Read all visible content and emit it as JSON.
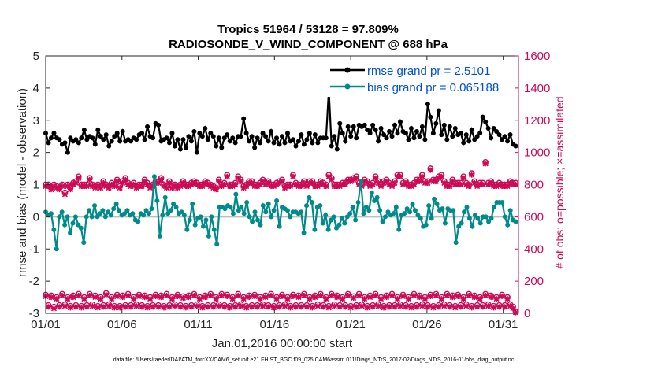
{
  "chart_data": {
    "type": "line",
    "title": "Tropics 51964 / 53128 = 97.809%",
    "subtitle": "RADIOSONDE_V_WIND_COMPONENT @ 688 hPa",
    "xlabel": "Jan.01,2016 00:00:00 start",
    "ylabel": "rmse and bias (model - observation)",
    "ylabel_right": "# of obs: o=possible; ×=assimilated",
    "x_ticks": [
      "01/01",
      "01/06",
      "01/11",
      "01/16",
      "01/21",
      "01/26",
      "01/31"
    ],
    "x_tick_days": [
      1,
      6,
      11,
      16,
      21,
      26,
      31
    ],
    "xlim": [
      1,
      32
    ],
    "ylim": [
      -3,
      5
    ],
    "y_ticks": [
      5,
      4,
      3,
      2,
      1,
      0,
      -1,
      -2,
      -3
    ],
    "ylim_right": [
      0,
      1600
    ],
    "y_ticks_right": [
      1600,
      1400,
      1200,
      1000,
      800,
      600,
      400,
      200,
      0
    ],
    "footnote": "data file: /Users/raeder/DAI/ATM_forcXX/CAM6_setup/f.e21.FHIST_BGC.f09_025.CAM6assim.011/Diags_NTrS_2017-02/Diags_NTrS_2016-01/obs_diag_output.nc",
    "legend": [
      {
        "name": "rmse grand pr = 2.5101",
        "color": "#000000"
      },
      {
        "name": "bias grand pr = 0.065188",
        "color": "#008b8b"
      }
    ],
    "series": [
      {
        "name": "rmse",
        "color": "#000000",
        "values": [
          2.6,
          2.3,
          2.45,
          2.6,
          2.45,
          2.4,
          2.25,
          2.3,
          2.0,
          2.45,
          2.35,
          2.4,
          2.3,
          2.45,
          2.7,
          2.4,
          2.5,
          2.45,
          2.25,
          2.7,
          2.5,
          2.4,
          2.55,
          2.2,
          2.35,
          2.5,
          2.6,
          2.35,
          2.65,
          2.35,
          2.4,
          2.35,
          2.45,
          2.4,
          2.55,
          2.6,
          2.4,
          2.8,
          2.5,
          2.45,
          2.9,
          2.85,
          2.35,
          2.4,
          2.45,
          2.3,
          2.6,
          2.2,
          2.4,
          2.1,
          2.4,
          2.15,
          2.5,
          2.35,
          2.65,
          2.0,
          2.6,
          2.5,
          2.75,
          2.4,
          2.6,
          2.5,
          2.2,
          2.45,
          2.15,
          2.45,
          2.55,
          2.35,
          2.45,
          2.3,
          2.5,
          2.5,
          3.05,
          2.6,
          2.35,
          2.5,
          2.15,
          2.45,
          2.3,
          2.6,
          2.5,
          2.35,
          2.65,
          2.3,
          2.45,
          2.25,
          2.5,
          2.3,
          2.6,
          2.35,
          2.4,
          2.2,
          2.35,
          2.55,
          2.25,
          2.4,
          2.6,
          2.3,
          2.55,
          2.3,
          2.45,
          2.45,
          2.45,
          3.95,
          2.2,
          2.5,
          2.1,
          2.9,
          2.6,
          2.35,
          2.8,
          2.5,
          2.8,
          2.45,
          2.85,
          2.8,
          2.85,
          2.7,
          2.6,
          2.85,
          2.7,
          2.35,
          2.75,
          2.55,
          2.45,
          2.65,
          2.5,
          2.85,
          2.6,
          2.95,
          2.65,
          2.6,
          2.4,
          2.75,
          2.45,
          2.65,
          2.5,
          2.8,
          2.4,
          3.5,
          3.1,
          2.6,
          2.9,
          3.3,
          2.55,
          2.85,
          2.4,
          2.8,
          2.5,
          2.75,
          2.55,
          2.6,
          2.3,
          2.55,
          2.35,
          2.7,
          2.4,
          2.5,
          2.6,
          3.1,
          2.95,
          2.75,
          2.45,
          2.75,
          2.65,
          2.55,
          2.4,
          2.5,
          2.35,
          2.55,
          2.25,
          2.2
        ]
      },
      {
        "name": "bias",
        "color": "#008b8b",
        "values": [
          0.15,
          0.05,
          0.1,
          -0.4,
          -1.0,
          0.0,
          0.15,
          -0.25,
          0.0,
          -0.5,
          -0.2,
          0.0,
          -0.25,
          -0.35,
          -0.8,
          0.0,
          0.2,
          0.0,
          0.35,
          0.0,
          0.1,
          0.2,
          0.0,
          0.15,
          0.05,
          0.25,
          0.4,
          0.2,
          0.05,
          0.1,
          0.2,
          0.05,
          0.1,
          -0.1,
          -0.15,
          0.1,
          0.05,
          0.2,
          0.1,
          0.25,
          1.25,
          0.5,
          -0.6,
          0.05,
          0.6,
          0.1,
          0.2,
          0.4,
          0.3,
          0.1,
          0.15,
          0.05,
          -0.4,
          -0.1,
          0.4,
          -0.25,
          -0.05,
          0.0,
          -0.3,
          -0.1,
          -0.6,
          0.0,
          -0.4,
          -0.85,
          0.3,
          0.3,
          0.25,
          0.35,
          0.3,
          0.1,
          0.7,
          0.2,
          0.3,
          0.1,
          0.45,
          0.0,
          -0.15,
          0.15,
          -0.1,
          -0.25,
          0.35,
          0.15,
          0.4,
          0.0,
          0.2,
          0.5,
          -0.3,
          0.3,
          0.25,
          0.2,
          0.0,
          0.15,
          0.15,
          0.1,
          0.15,
          -0.5,
          0.35,
          0.6,
          0.45,
          -0.4,
          0.3,
          0.35,
          -0.2,
          0.05,
          -0.4,
          -0.1,
          0.0,
          -0.35,
          -0.25,
          -0.05,
          -0.2,
          0.0,
          0.1,
          0.3,
          -0.1,
          0.45,
          1.1,
          0.1,
          0.3,
          0.2,
          0.75,
          0.5,
          0.6,
          0.2,
          -0.15,
          0.0,
          0.15,
          0.05,
          0.1,
          0.3,
          -0.4,
          0.05,
          0.1,
          0.25,
          0.15,
          0.4,
          0.2,
          0.05,
          -0.05,
          -0.3,
          -0.25,
          0.35,
          -0.05,
          0.55,
          0.4,
          0.2,
          0.25,
          -0.2,
          0.25,
          0.2,
          0.2,
          -0.8,
          -0.3,
          -0.2,
          0.15,
          0.3,
          -0.05,
          -0.3,
          0.05,
          -0.05,
          -0.2,
          0.0,
          0.0,
          -0.15,
          -0.05,
          0.3,
          0.45,
          0.45,
          0.45,
          0.0,
          -0.25,
          0.2,
          -0.1,
          -0.15
        ]
      },
      {
        "name": "obs possible (o)",
        "color": "#cc0a55",
        "axis": "right",
        "values": [
          800,
          800,
          780,
          800,
          790,
          780,
          800,
          750,
          800,
          780,
          810,
          820,
          850,
          800,
          800,
          800,
          840,
          800,
          790,
          800,
          790,
          820,
          800,
          790,
          810,
          800,
          830,
          790,
          820,
          840,
          810,
          800,
          810,
          790,
          800,
          800,
          830,
          810,
          790,
          800,
          820,
          820,
          840,
          800,
          790,
          820,
          790,
          800,
          790,
          800,
          820,
          800,
          800,
          810,
          820,
          810,
          800,
          800,
          820,
          810,
          800,
          790,
          780,
          830,
          800,
          810,
          860,
          800,
          800,
          810,
          850,
          830,
          790,
          800,
          820,
          820,
          800,
          800,
          810,
          830,
          810,
          820,
          800,
          800,
          810,
          820,
          830,
          790,
          800,
          800,
          860,
          810,
          800,
          800,
          820,
          800,
          820,
          820,
          800,
          800,
          820,
          810,
          800,
          860,
          840,
          800,
          800,
          800,
          810,
          810,
          830,
          830,
          840,
          850,
          810,
          800,
          830,
          820,
          800,
          810,
          850,
          820,
          800,
          820,
          830,
          810,
          800,
          820,
          860,
          860,
          810,
          820,
          800,
          800,
          810,
          830,
          830,
          860,
          820,
          820,
          900,
          830,
          830,
          850,
          860,
          820,
          800,
          800,
          830,
          810,
          810,
          810,
          850,
          810,
          800,
          870,
          820,
          800,
          810,
          810,
          940,
          810,
          820,
          800,
          800,
          810,
          800,
          800,
          800,
          820,
          810,
          810
        ]
      },
      {
        "name": "obs assimilated (x)",
        "color": "#cc0a55",
        "axis": "right",
        "values": [
          790,
          790,
          770,
          790,
          780,
          770,
          790,
          740,
          790,
          770,
          800,
          810,
          840,
          790,
          790,
          790,
          830,
          790,
          780,
          790,
          780,
          810,
          790,
          780,
          800,
          790,
          820,
          780,
          810,
          830,
          800,
          790,
          800,
          780,
          790,
          790,
          820,
          800,
          780,
          790,
          810,
          810,
          830,
          790,
          780,
          810,
          780,
          790,
          780,
          790,
          810,
          790,
          790,
          800,
          810,
          800,
          790,
          790,
          810,
          800,
          790,
          780,
          770,
          820,
          790,
          800,
          850,
          790,
          790,
          800,
          840,
          820,
          780,
          790,
          810,
          810,
          790,
          790,
          800,
          820,
          800,
          810,
          790,
          790,
          800,
          810,
          820,
          780,
          790,
          790,
          850,
          800,
          790,
          790,
          810,
          790,
          810,
          810,
          790,
          790,
          810,
          800,
          790,
          850,
          830,
          790,
          790,
          790,
          800,
          800,
          820,
          820,
          830,
          840,
          800,
          790,
          820,
          810,
          790,
          800,
          840,
          810,
          790,
          810,
          820,
          800,
          790,
          810,
          850,
          850,
          800,
          810,
          790,
          790,
          800,
          820,
          820,
          850,
          810,
          810,
          890,
          820,
          820,
          840,
          850,
          810,
          790,
          790,
          820,
          800,
          800,
          800,
          840,
          800,
          790,
          860,
          810,
          790,
          800,
          800,
          930,
          800,
          810,
          790,
          790,
          800,
          790,
          790,
          790,
          810,
          800,
          800
        ]
      }
    ],
    "obs_low": {
      "possible": [
        115,
        50,
        110,
        40,
        100,
        50,
        120,
        55,
        100,
        45,
        110,
        50,
        120,
        45,
        100,
        50,
        120,
        55,
        110,
        45,
        100,
        50,
        125,
        55,
        100,
        45,
        115,
        45,
        110,
        50,
        120,
        50,
        100,
        55,
        115,
        50,
        110,
        45,
        100,
        50,
        115,
        50,
        110,
        45,
        120,
        50,
        100,
        55,
        115,
        50,
        105,
        45,
        110,
        50,
        120,
        55,
        100,
        45,
        110,
        50,
        120,
        50,
        100,
        55,
        120,
        50,
        115,
        45,
        100,
        50,
        120,
        55,
        100,
        45,
        110,
        50,
        115,
        50,
        100,
        55,
        110,
        50,
        120,
        45,
        100,
        50,
        115,
        55,
        100,
        45,
        115,
        50,
        110,
        50,
        120,
        50,
        100,
        45,
        110,
        55,
        120,
        50,
        100,
        45,
        120,
        55,
        110,
        50,
        100,
        50,
        120,
        45,
        105,
        50,
        120,
        55,
        100,
        45,
        110,
        50,
        120,
        55,
        100,
        45,
        110,
        50,
        120,
        50,
        100,
        55,
        115,
        50,
        100,
        45,
        120,
        50,
        110,
        55,
        100,
        50,
        115,
        45,
        120,
        50,
        100,
        55,
        120,
        50,
        110,
        45,
        115,
        50,
        100,
        55,
        120,
        45,
        110,
        50,
        100,
        50,
        120,
        55,
        110,
        45,
        100,
        50,
        115,
        50,
        100,
        55,
        40,
        10
      ],
      "assimilated": [
        105,
        40,
        100,
        30,
        90,
        40,
        110,
        45,
        90,
        35,
        100,
        40,
        110,
        35,
        90,
        40,
        110,
        45,
        100,
        35,
        90,
        40,
        115,
        45,
        90,
        35,
        105,
        35,
        100,
        40,
        110,
        40,
        90,
        45,
        105,
        40,
        100,
        35,
        90,
        40,
        105,
        40,
        100,
        35,
        110,
        40,
        90,
        45,
        105,
        40,
        95,
        35,
        100,
        40,
        110,
        45,
        90,
        35,
        100,
        40,
        110,
        40,
        90,
        45,
        110,
        40,
        105,
        35,
        90,
        40,
        110,
        45,
        90,
        35,
        100,
        40,
        105,
        40,
        90,
        45,
        100,
        40,
        110,
        35,
        90,
        40,
        105,
        45,
        90,
        35,
        105,
        40,
        100,
        40,
        110,
        40,
        90,
        35,
        100,
        45,
        110,
        40,
        90,
        35,
        110,
        45,
        100,
        40,
        90,
        40,
        110,
        35,
        95,
        40,
        110,
        45,
        90,
        35,
        100,
        40,
        110,
        45,
        90,
        35,
        100,
        40,
        110,
        40,
        90,
        45,
        105,
        40,
        90,
        35,
        110,
        40,
        100,
        45,
        90,
        40,
        105,
        35,
        110,
        40,
        90,
        45,
        110,
        40,
        100,
        35,
        105,
        40,
        90,
        45,
        110,
        35,
        100,
        40,
        90,
        40,
        110,
        45,
        100,
        35,
        90,
        40,
        105,
        40,
        90,
        45,
        30,
        5
      ]
    }
  }
}
